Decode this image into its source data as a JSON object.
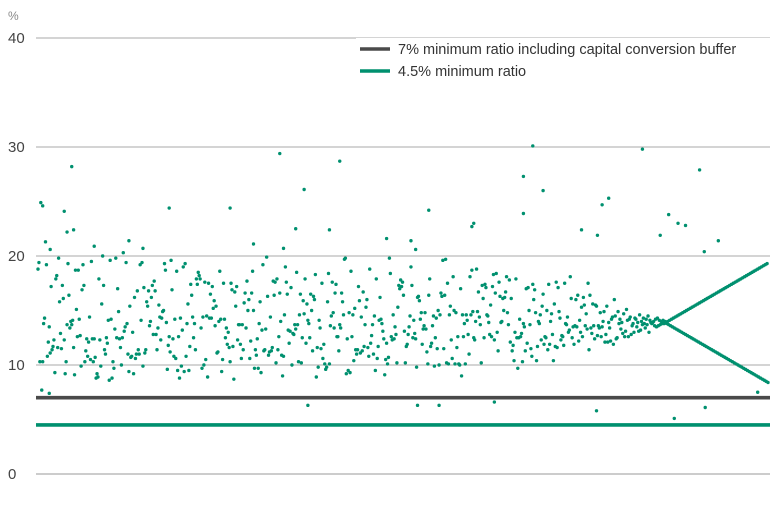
{
  "chart_data": {
    "type": "scatter",
    "title": "",
    "xlabel": "",
    "ylabel": "%",
    "ylim": [
      0,
      40
    ],
    "yticks": [
      0,
      10,
      20,
      30,
      40
    ],
    "grid": true,
    "legend_position": "top-right",
    "series": [
      {
        "name": "7% minimum ratio including capital conversion buffer",
        "type": "hline",
        "value": 7,
        "color": "#4a4a4a"
      },
      {
        "name": "4.5% minimum ratio",
        "type": "hline",
        "value": 4.5,
        "color": "#00906f"
      }
    ],
    "points": {
      "color": "#00906f",
      "count": 780,
      "y": [
        18.8,
        19.4,
        10.3,
        24.9,
        7.7,
        10.3,
        13.8,
        14.3,
        21.3,
        19.2,
        10.8,
        12.1,
        13.5,
        11.1,
        17.2,
        11.4,
        11.7,
        12.3,
        9.3,
        17.9,
        18.2,
        11.6,
        19.8,
        15.8,
        12.9,
        11.5,
        17.3,
        16.1,
        12.3,
        9.2,
        10.3,
        13.7,
        19.3,
        16.4,
        13.4,
        14.0,
        13.7,
        14.1,
        11.6,
        9.1,
        18.7,
        15.1,
        12.6,
        18.7,
        14.2,
        12.7,
        9.9,
        16.9,
        19.2,
        17.3,
        10.3,
        11.3,
        12.4,
        10.8,
        12.1,
        14.4,
        10.5,
        19.5,
        12.4,
        10.3,
        12.4,
        10.7,
        8.8,
        9.2,
        8.9,
        17.9,
        12.3,
        9.9,
        15.6,
        20.0,
        17.3,
        11.4,
        11.0,
        12.5,
        12.0,
        14.1,
        8.6,
        19.6,
        14.2,
        8.8,
        10.3,
        9.7,
        13.3,
        19.8,
        12.5,
        17.0,
        14.9,
        12.4,
        11.6,
        10.0,
        12.5,
        20.3,
        13.1,
        13.5,
        19.4,
        13.8,
        11.0,
        9.4,
        15.4,
        10.7,
        10.8,
        13.0,
        9.2,
        16.2,
        10.6,
        11.0,
        16.8,
        11.4,
        11.0,
        19.2,
        14.1,
        19.4,
        9.9,
        17.1,
        11.1,
        11.4,
        15.8,
        15.4,
        16.8,
        13.6,
        14.0,
        16.2,
        17.3,
        12.8,
        17.7,
        16.8,
        12.8,
        11.4,
        13.4,
        15.5,
        14.4,
        12.3,
        14.3,
        14.9,
        15.0,
        19.3,
        18.7,
        13.9,
        9.6,
        11.8,
        12.6,
        11.2,
        19.6,
        16.9,
        12.4,
        10.8,
        14.2,
        10.6,
        18.6,
        9.5,
        12.6,
        8.8,
        14.3,
        9.9,
        13.2,
        19.0,
        9.4,
        19.3,
        10.8,
        13.8,
        15.6,
        9.5,
        11.7,
        17.4,
        16.4,
        14.4,
        12.5,
        13.8,
        11.4,
        17.9,
        17.4,
        18.5,
        18.2,
        17.9,
        13.4,
        9.7,
        14.4,
        10.0,
        17.6,
        10.5,
        14.5,
        8.9,
        17.5,
        14.3,
        16.5,
        14.3,
        17.2,
        15.2,
        15.9,
        13.6,
        15.4,
        11.1,
        11.2,
        14.0,
        18.6,
        14.2,
        9.4,
        10.5,
        17.5,
        14.2,
        12.5,
        13.4,
        11.9,
        13.0,
        11.6,
        10.3,
        17.5,
        16.9,
        11.7,
        8.7,
        16.7,
        15.4,
        17.2,
        12.3,
        13.7,
        13.7,
        11.9,
        10.6,
        13.7,
        11.4,
        15.7,
        16.6,
        13.4,
        17.7,
        15.0,
        16.0,
        10.6,
        12.2,
        16.6,
        18.6,
        15.0,
        9.7,
        11.4,
        10.9,
        12.4,
        9.7,
        13.8,
        15.8,
        9.3,
        13.2,
        19.2,
        11.3,
        11.4,
        13.3,
        19.9,
        16.3,
        10.9,
        11.2,
        14.4,
        11.3,
        11.6,
        17.7,
        16.4,
        17.6,
        10.2,
        17.9,
        11.4,
        12.6,
        16.6,
        14.0,
        10.9,
        9.0,
        10.8,
        14.6,
        19.0,
        17.6,
        16.5,
        13.2,
        12.0,
        13.1,
        17.1,
        10.0,
        12.9,
        12.8,
        13.7,
        13.3,
        18.5,
        13.7,
        10.3,
        14.6,
        16.5,
        10.2,
        12.5,
        15.9,
        14.7,
        17.9,
        12.0,
        15.6,
        14.1,
        13.8,
        12.5,
        16.5,
        15.0,
        11.3,
        16.3,
        16.0,
        18.3,
        8.9,
        11.6,
        9.8,
        14.1,
        13.4,
        11.5,
        17.5,
        10.6,
        11.9,
        10.1,
        9.6,
        9.8,
        15.8,
        18.4,
        10.1,
        13.6,
        14.5,
        17.6,
        14.8,
        13.4,
        16.6,
        17.4,
        12.6,
        12.6,
        11.3,
        13.7,
        13.4,
        16.6,
        15.8,
        14.6,
        19.7,
        19.8,
        9.2,
        12.4,
        9.5,
        14.8,
        9.3,
        18.6,
        12.6,
        14.6,
        10.4,
        15.2,
        11.4,
        11.0,
        11.4,
        17.2,
        15.9,
        11.1,
        14.4,
        11.3,
        16.7,
        11.7,
        13.7,
        15.3,
        16.0,
        11.6,
        10.8,
        18.8,
        12.0,
        12.7,
        13.7,
        11.0,
        14.5,
        9.5,
        17.9,
        10.6,
        11.7,
        14.1,
        16.2,
        14.2,
        13.8,
        13.1,
        12.4,
        9.1,
        10.5,
        12.0,
        10.1,
        10.7,
        19.8,
        18.4,
        12.6,
        12.3,
        14.6,
        12.4,
        13.5,
        12.8,
        10.2,
        15.3,
        17.3,
        17.0,
        17.8,
        17.2,
        17.6,
        16.4,
        13.1,
        10.2,
        11.7,
        11.9,
        12.8,
        13.5,
        14.5,
        19.0,
        17.3,
        12.5,
        14.1,
        12.9,
        12.4,
        9.8,
        16.2,
        16.3,
        15.9,
        14.2,
        14.8,
        11.9,
        13.3,
        13.6,
        14.8,
        13.3,
        11.2,
        10.1,
        16.4,
        17.9,
        11.7,
        12.0,
        13.6,
        14.5,
        9.9,
        12.5,
        14.3,
        11.5,
        15.0,
        10.0,
        14.6,
        16.6,
        16.3,
        19.6,
        11.5,
        16.4,
        19.7,
        10.2,
        17.5,
        10.1,
        14.6,
        15.4,
        12.3,
        10.6,
        18.1,
        15.0,
        10.1,
        14.8,
        11.6,
        12.6,
        10.1,
        10.0,
        17.0,
        9.0,
        14.6,
        12.6,
        13.8,
        10.1,
        14.6,
        14.1,
        12.8,
        11.0,
        18.1,
        14.6,
        18.7,
        14.9,
        12.5,
        12.3,
        14.0,
        18.8,
        14.9,
        16.7,
        14.4,
        13.7,
        10.2,
        17.3,
        16.1,
        12.5,
        17.4,
        17.1,
        14.6,
        14.5,
        13.9,
        12.8,
        15.5,
        12.6,
        17.2,
        18.3,
        12.3,
        16.6,
        18.4,
        13.0,
        11.3,
        17.6,
        16.3,
        13.9,
        14.0,
        16.1,
        15.0,
        16.2,
        16.7,
        18.1,
        14.8,
        13.7,
        17.8,
        12.1,
        16.1,
        11.3,
        11.8,
        10.4,
        13.0,
        17.9,
        12.5,
        9.7,
        12.5,
        14.2,
        12.6,
        12.9,
        10.3,
        13.8,
        13.5,
        11.3,
        17.0,
        12.0,
        17.1,
        15.0,
        13.7,
        11.5,
        10.8,
        17.4,
        16.0,
        16.9,
        14.8,
        10.4,
        11.7,
        14.0,
        13.8,
        14.6,
        12.3,
        15.4,
        16.5,
        11.9,
        12.6,
        12.5,
        15.0,
        11.4,
        17.4,
        11.9,
        14.0,
        14.7,
        12.8,
        10.4,
        15.6,
        11.7,
        17.6,
        11.6,
        17.1,
        14.9,
        14.3,
        12.3,
        12.7,
        12.6,
        11.8,
        17.5,
        13.8,
        13.7,
        14.4,
        13.0,
        13.2,
        18.1,
        16.1,
        12.5,
        13.5,
        11.9,
        13.6,
        16.0,
        13.5,
        16.4,
        12.2,
        14.1,
        13.0,
        15.3,
        12.6,
        16.2,
        15.5,
        13.6,
        14.7,
        13.3,
        17.5,
        11.4,
        16.4,
        13.4,
        12.9,
        15.6,
        13.6,
        12.4,
        15.5,
        15.4,
        12.7,
        13.6,
        13.4,
        14.8,
        12.6,
        13.5,
        14.0,
        14.9,
        12.1,
        12.8,
        15.4,
        12.1,
        13.9,
        13.4,
        12.2,
        14.2,
        14.4,
        11.9,
        16.0,
        14.5,
        12.4,
        12.5,
        14.9,
        13.8,
        14.2,
        13.3,
        13.9,
        12.9,
        14.7,
        12.6,
        13.1,
        15.1,
        14.1,
        12.6,
        14.2,
        14.4,
        12.8,
        13.6,
        13.8,
        13.0,
        14.3,
        14.2,
        13.5,
        13.9,
        13.1,
        14.6,
        13.2,
        14.0,
        13.7,
        14.3,
        13.8,
        13.4,
        14.2,
        13.7,
        14.5,
        13.0,
        14.1,
        13.9,
        13.8,
        13.9,
        14.0,
        13.6,
        14.2,
        13.5,
        14.3,
        13.6,
        14.1,
        13.7,
        14.0,
        13.8,
        14.1,
        13.8,
        14.0,
        13.9,
        13.8,
        14.0,
        13.7,
        14.1,
        13.6,
        14.2,
        13.5,
        14.3,
        13.4,
        14.4,
        13.3,
        14.5,
        13.2,
        14.6,
        13.1,
        14.7,
        13.0,
        14.8,
        12.9,
        14.9,
        12.8,
        15.0,
        12.7,
        15.1,
        12.6,
        15.2,
        12.5,
        15.3,
        12.4,
        15.4,
        12.3,
        15.5,
        12.2,
        15.6,
        12.1,
        15.7,
        12.0,
        15.8,
        11.9,
        15.9,
        11.8,
        16.0,
        11.7,
        16.1,
        11.6,
        16.2,
        11.5,
        16.3,
        11.4,
        16.4,
        11.3,
        16.5,
        11.2,
        16.6,
        11.1,
        16.7,
        11.0,
        16.8,
        10.9,
        16.9,
        10.8,
        17.0,
        10.7,
        17.1,
        10.6,
        17.2,
        10.5,
        17.3,
        10.4,
        17.4,
        10.3,
        17.5,
        10.2,
        17.6,
        10.1,
        17.7,
        10.0,
        17.8,
        9.9,
        17.9,
        9.8,
        18.0,
        9.7,
        18.1,
        9.6,
        18.2,
        9.5,
        18.3,
        9.4,
        18.4,
        9.3,
        18.5,
        9.2,
        18.6,
        9.1,
        18.7,
        9.0,
        18.8,
        8.9,
        18.9,
        8.8,
        19.0,
        8.7,
        19.1,
        8.6,
        19.2,
        8.5,
        19.3,
        8.4,
        19.4,
        8.3,
        19.5,
        8.2,
        19.6,
        8.1,
        19.7,
        8.0,
        19.8,
        7.9,
        19.9,
        7.8,
        20.0,
        7.7
      ],
      "outliers": [
        {
          "i": 5,
          "y": 24.6
        },
        {
          "i": 13,
          "y": 20.6
        },
        {
          "i": 28,
          "y": 24.1
        },
        {
          "i": 31,
          "y": 22.2
        },
        {
          "i": 36,
          "y": 28.2
        },
        {
          "i": 38,
          "y": 22.4
        },
        {
          "i": 60,
          "y": 20.9
        },
        {
          "i": 97,
          "y": 21.4
        },
        {
          "i": 112,
          "y": 20.7
        },
        {
          "i": 140,
          "y": 24.4
        },
        {
          "i": 205,
          "y": 24.4
        },
        {
          "i": 230,
          "y": 21.1
        },
        {
          "i": 258,
          "y": 29.4
        },
        {
          "i": 262,
          "y": 20.7
        },
        {
          "i": 275,
          "y": 22.5
        },
        {
          "i": 284,
          "y": 26.1
        },
        {
          "i": 311,
          "y": 22.4
        },
        {
          "i": 322,
          "y": 28.7
        },
        {
          "i": 372,
          "y": 21.6
        },
        {
          "i": 398,
          "y": 21.4
        },
        {
          "i": 403,
          "y": 20.6
        },
        {
          "i": 417,
          "y": 24.2
        },
        {
          "i": 463,
          "y": 22.7
        },
        {
          "i": 465,
          "y": 23.0
        },
        {
          "i": 518,
          "y": 27.3
        },
        {
          "i": 518,
          "y": 23.9
        },
        {
          "i": 528,
          "y": 30.1
        },
        {
          "i": 539,
          "y": 26.0
        },
        {
          "i": 580,
          "y": 22.4
        },
        {
          "i": 597,
          "y": 21.9
        },
        {
          "i": 602,
          "y": 24.7
        },
        {
          "i": 609,
          "y": 25.3
        },
        {
          "i": 645,
          "y": 29.8
        },
        {
          "i": 664,
          "y": 21.9
        },
        {
          "i": 673,
          "y": 23.8
        },
        {
          "i": 683,
          "y": 23.0
        },
        {
          "i": 691,
          "y": 22.8
        },
        {
          "i": 706,
          "y": 27.9
        },
        {
          "i": 711,
          "y": 20.4
        },
        {
          "i": 726,
          "y": 21.4
        }
      ],
      "lows": [
        {
          "i": 12,
          "y": 7.4
        },
        {
          "i": 215,
          "y": 7.0
        },
        {
          "i": 288,
          "y": 6.3
        },
        {
          "i": 405,
          "y": 6.3
        },
        {
          "i": 428,
          "y": 6.3
        },
        {
          "i": 487,
          "y": 6.6
        },
        {
          "i": 596,
          "y": 5.8
        },
        {
          "i": 679,
          "y": 5.1
        },
        {
          "i": 712,
          "y": 6.1
        },
        {
          "i": 768,
          "y": 7.5
        }
      ]
    }
  }
}
